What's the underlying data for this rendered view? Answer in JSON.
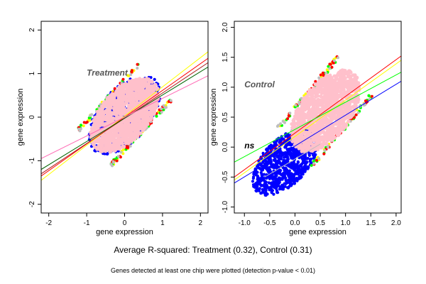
{
  "figure": {
    "caption": "Average R-squared: Treatment (0.32), Control (0.31)",
    "footnote": "Genes detected at least one chip were plotted (detection p-value < 0.01)"
  },
  "colors": {
    "blue": "#0000ff",
    "pink": "#ffc0cb",
    "red": "#ff0000",
    "green": "#00ff00",
    "yellow": "#ffff00",
    "gray": "#bebebe",
    "darkgreen": "#006400",
    "darkred": "#b22222",
    "teal": "#008080",
    "pinkline": "#ff69b4"
  },
  "chart_data": [
    {
      "type": "scatter",
      "panel": "left",
      "xlabel": "gene expression",
      "ylabel": "gene expression",
      "xlim": [
        -2.2,
        2.2
      ],
      "ylim": [
        -2.2,
        2.2
      ],
      "xticks": [
        -2,
        -1,
        0,
        1,
        2
      ],
      "yticks": [
        -2,
        -1,
        0,
        1,
        2
      ],
      "annotations": [
        {
          "text": "Treatment",
          "x": -1.0,
          "y": 0.95,
          "color": "#555555"
        }
      ],
      "clouds": [
        {
          "color": "blue",
          "center": [
            0.0,
            0.05
          ],
          "half_extent": [
            1.1,
            1.05
          ],
          "points": 650
        },
        {
          "color": "pink",
          "center": [
            0.0,
            0.05
          ],
          "half_extent": [
            1.05,
            1.0
          ],
          "points": 1300
        }
      ],
      "fit_lines": [
        {
          "color": "yellow",
          "x": [
            -2.2,
            2.2
          ],
          "y": [
            -1.45,
            1.5
          ]
        },
        {
          "color": "red",
          "x": [
            -2.2,
            2.2
          ],
          "y": [
            -1.35,
            1.35
          ]
        },
        {
          "color": "darkred",
          "x": [
            -2.2,
            2.2
          ],
          "y": [
            -1.3,
            1.25
          ]
        },
        {
          "color": "darkgreen",
          "x": [
            -2.2,
            2.2
          ],
          "y": [
            -1.2,
            1.15
          ]
        },
        {
          "color": "pinkline",
          "x": [
            -2.2,
            2.2
          ],
          "y": [
            -0.95,
            0.95
          ]
        }
      ]
    },
    {
      "type": "scatter",
      "panel": "right",
      "xlabel": "gene expression",
      "ylabel": "gene expression",
      "xlim": [
        -1.2,
        2.1
      ],
      "ylim": [
        -1.1,
        2.1
      ],
      "xticks": [
        -1.0,
        -0.5,
        0.0,
        0.5,
        1.0,
        1.5,
        2.0
      ],
      "xtick_labels": [
        "-1.0",
        "-0.5",
        "0.0",
        "0.5",
        "1.0",
        "1.5",
        "2.0"
      ],
      "yticks": [
        -1.0,
        -0.5,
        0.0,
        0.5,
        1.0,
        1.5,
        2.0
      ],
      "ytick_labels": [
        "-1.0",
        "-0.5",
        "0.0",
        "0.5",
        "1.0",
        "1.5",
        "2.0"
      ],
      "annotations": [
        {
          "text": "Control",
          "x": -1.0,
          "y": 1.0,
          "color": "#555555"
        },
        {
          "text": "ns",
          "x": -1.0,
          "y": -0.02,
          "color": "#000000"
        }
      ],
      "clouds": [
        {
          "color": "blue",
          "center": [
            -0.2,
            -0.25
          ],
          "half_extent": [
            0.75,
            0.65
          ],
          "points": 900
        },
        {
          "color": "pink",
          "center": [
            0.6,
            0.6
          ],
          "half_extent": [
            0.8,
            0.8
          ],
          "points": 1300
        }
      ],
      "fit_lines": [
        {
          "color": "red",
          "x": [
            -1.2,
            2.1
          ],
          "y": [
            -0.5,
            1.52
          ]
        },
        {
          "color": "yellow",
          "x": [
            -1.2,
            2.1
          ],
          "y": [
            -0.55,
            1.45
          ]
        },
        {
          "color": "green",
          "x": [
            -1.2,
            2.1
          ],
          "y": [
            -0.25,
            1.25
          ]
        },
        {
          "color": "blue",
          "x": [
            -1.2,
            2.1
          ],
          "y": [
            -0.6,
            1.1
          ]
        },
        {
          "color": "gray",
          "x": [
            -0.6,
            0.5
          ],
          "y": [
            -0.5,
            0.05
          ]
        }
      ]
    }
  ]
}
